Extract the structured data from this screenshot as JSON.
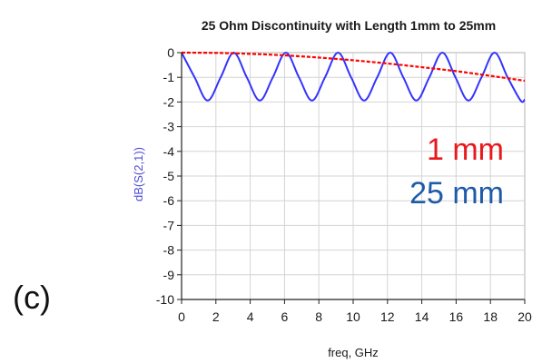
{
  "panel_label": "(c)",
  "chart_data": {
    "type": "line",
    "title": "25 Ohm Discontinuity with Length 1mm to 25mm",
    "xlabel": "freq, GHz",
    "ylabel": "dB(S(2,1))",
    "xlim": [
      0,
      20
    ],
    "ylim": [
      -10,
      0
    ],
    "x_ticks": [
      0,
      2,
      4,
      6,
      8,
      10,
      12,
      14,
      16,
      18,
      20
    ],
    "y_ticks": [
      0,
      -1,
      -2,
      -3,
      -4,
      -5,
      -6,
      -7,
      -8,
      -9,
      -10
    ],
    "grid": true,
    "series": [
      {
        "label": "1 mm",
        "color": "#ff0000",
        "style": "dashed",
        "x": [
          0,
          2,
          4,
          6,
          8,
          10,
          12,
          14,
          16,
          18,
          20
        ],
        "y": [
          0,
          -0.01,
          -0.05,
          -0.11,
          -0.2,
          -0.31,
          -0.44,
          -0.59,
          -0.75,
          -0.94,
          -1.14
        ]
      },
      {
        "label": "25 mm",
        "color": "#3333ff",
        "style": "solid",
        "x": [
          0,
          0.76,
          1.52,
          2.28,
          3.04,
          3.8,
          4.56,
          5.32,
          6.08,
          6.84,
          7.6,
          8.36,
          9.12,
          9.88,
          10.64,
          11.4,
          12.16,
          12.92,
          13.68,
          14.44,
          15.2,
          15.96,
          16.72,
          17.48,
          18.24,
          19.0,
          19.76,
          20
        ],
        "y": [
          0,
          -1.0,
          -1.94,
          -1.0,
          0,
          -1.0,
          -1.94,
          -1.0,
          0,
          -1.0,
          -1.94,
          -1.0,
          0,
          -1.0,
          -1.94,
          -1.0,
          0,
          -1.0,
          -1.94,
          -1.0,
          0,
          -1.0,
          -1.94,
          -1.0,
          0,
          -1.0,
          -1.94,
          -1.9
        ]
      }
    ],
    "annotations": [
      {
        "text": "1 mm",
        "color": "#e8181b"
      },
      {
        "text": "25 mm",
        "color": "#1f5ba8"
      }
    ],
    "ylabel_color": "#4d4dd9"
  }
}
